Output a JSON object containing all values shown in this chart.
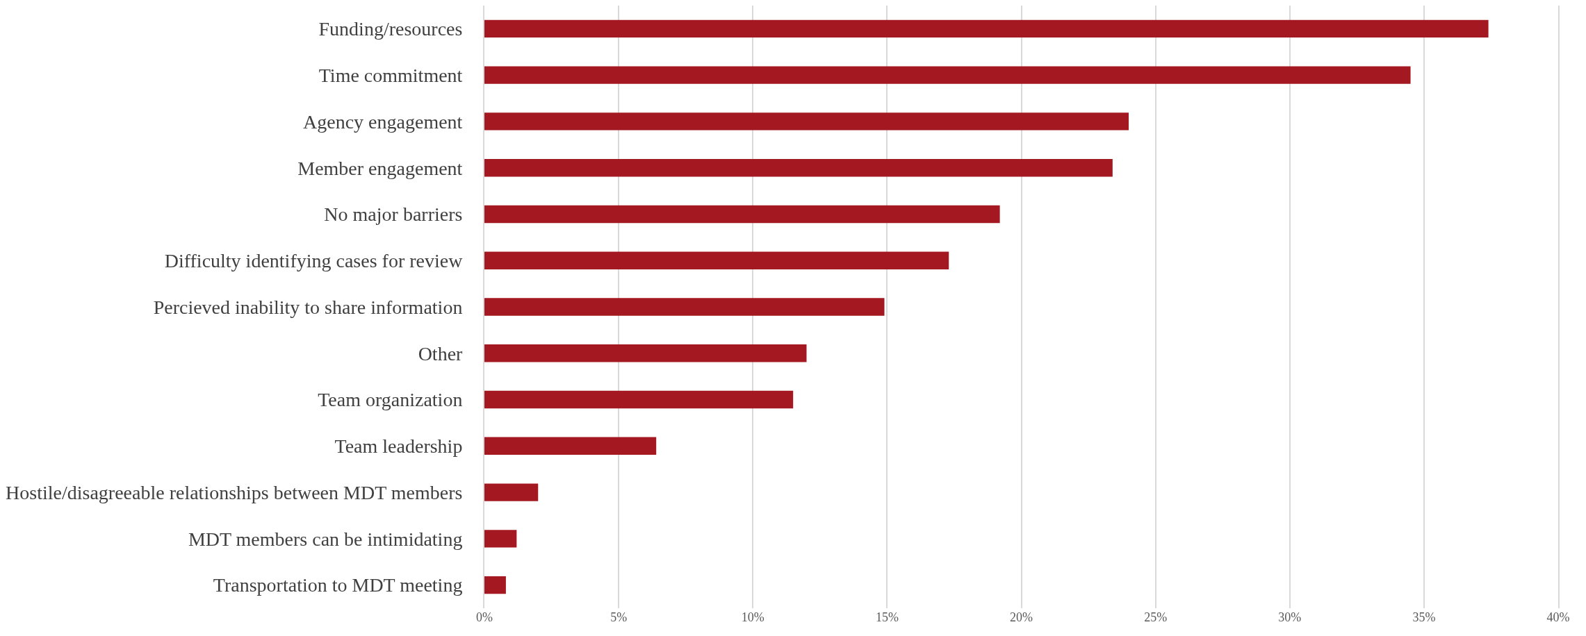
{
  "chart_data": {
    "type": "bar",
    "orientation": "horizontal",
    "categories": [
      "Funding/resources",
      "Time commitment",
      "Agency engagement",
      "Member engagement",
      "No major barriers",
      "Difficulty identifying cases for review",
      "Percieved inability to share information",
      "Other",
      "Team organization",
      "Team leadership",
      "Hostile/disagreeable relationships between MDT members",
      "MDT members can be intimidating",
      "Transportation to MDT meeting"
    ],
    "values": [
      37.4,
      34.5,
      24.0,
      23.4,
      19.2,
      17.3,
      14.9,
      12.0,
      11.5,
      6.4,
      2.0,
      1.2,
      0.8
    ],
    "color": "#a31821",
    "xlim": [
      0,
      40
    ],
    "xticks": [
      {
        "value": 0,
        "label": "0%"
      },
      {
        "value": 5,
        "label": "5%"
      },
      {
        "value": 10,
        "label": "10%"
      },
      {
        "value": 15,
        "label": "15%"
      },
      {
        "value": 20,
        "label": "20%"
      },
      {
        "value": 25,
        "label": "25%"
      },
      {
        "value": 30,
        "label": "30%"
      },
      {
        "value": 35,
        "label": "35%"
      },
      {
        "value": 40,
        "label": "40%"
      }
    ],
    "grid": "x"
  }
}
